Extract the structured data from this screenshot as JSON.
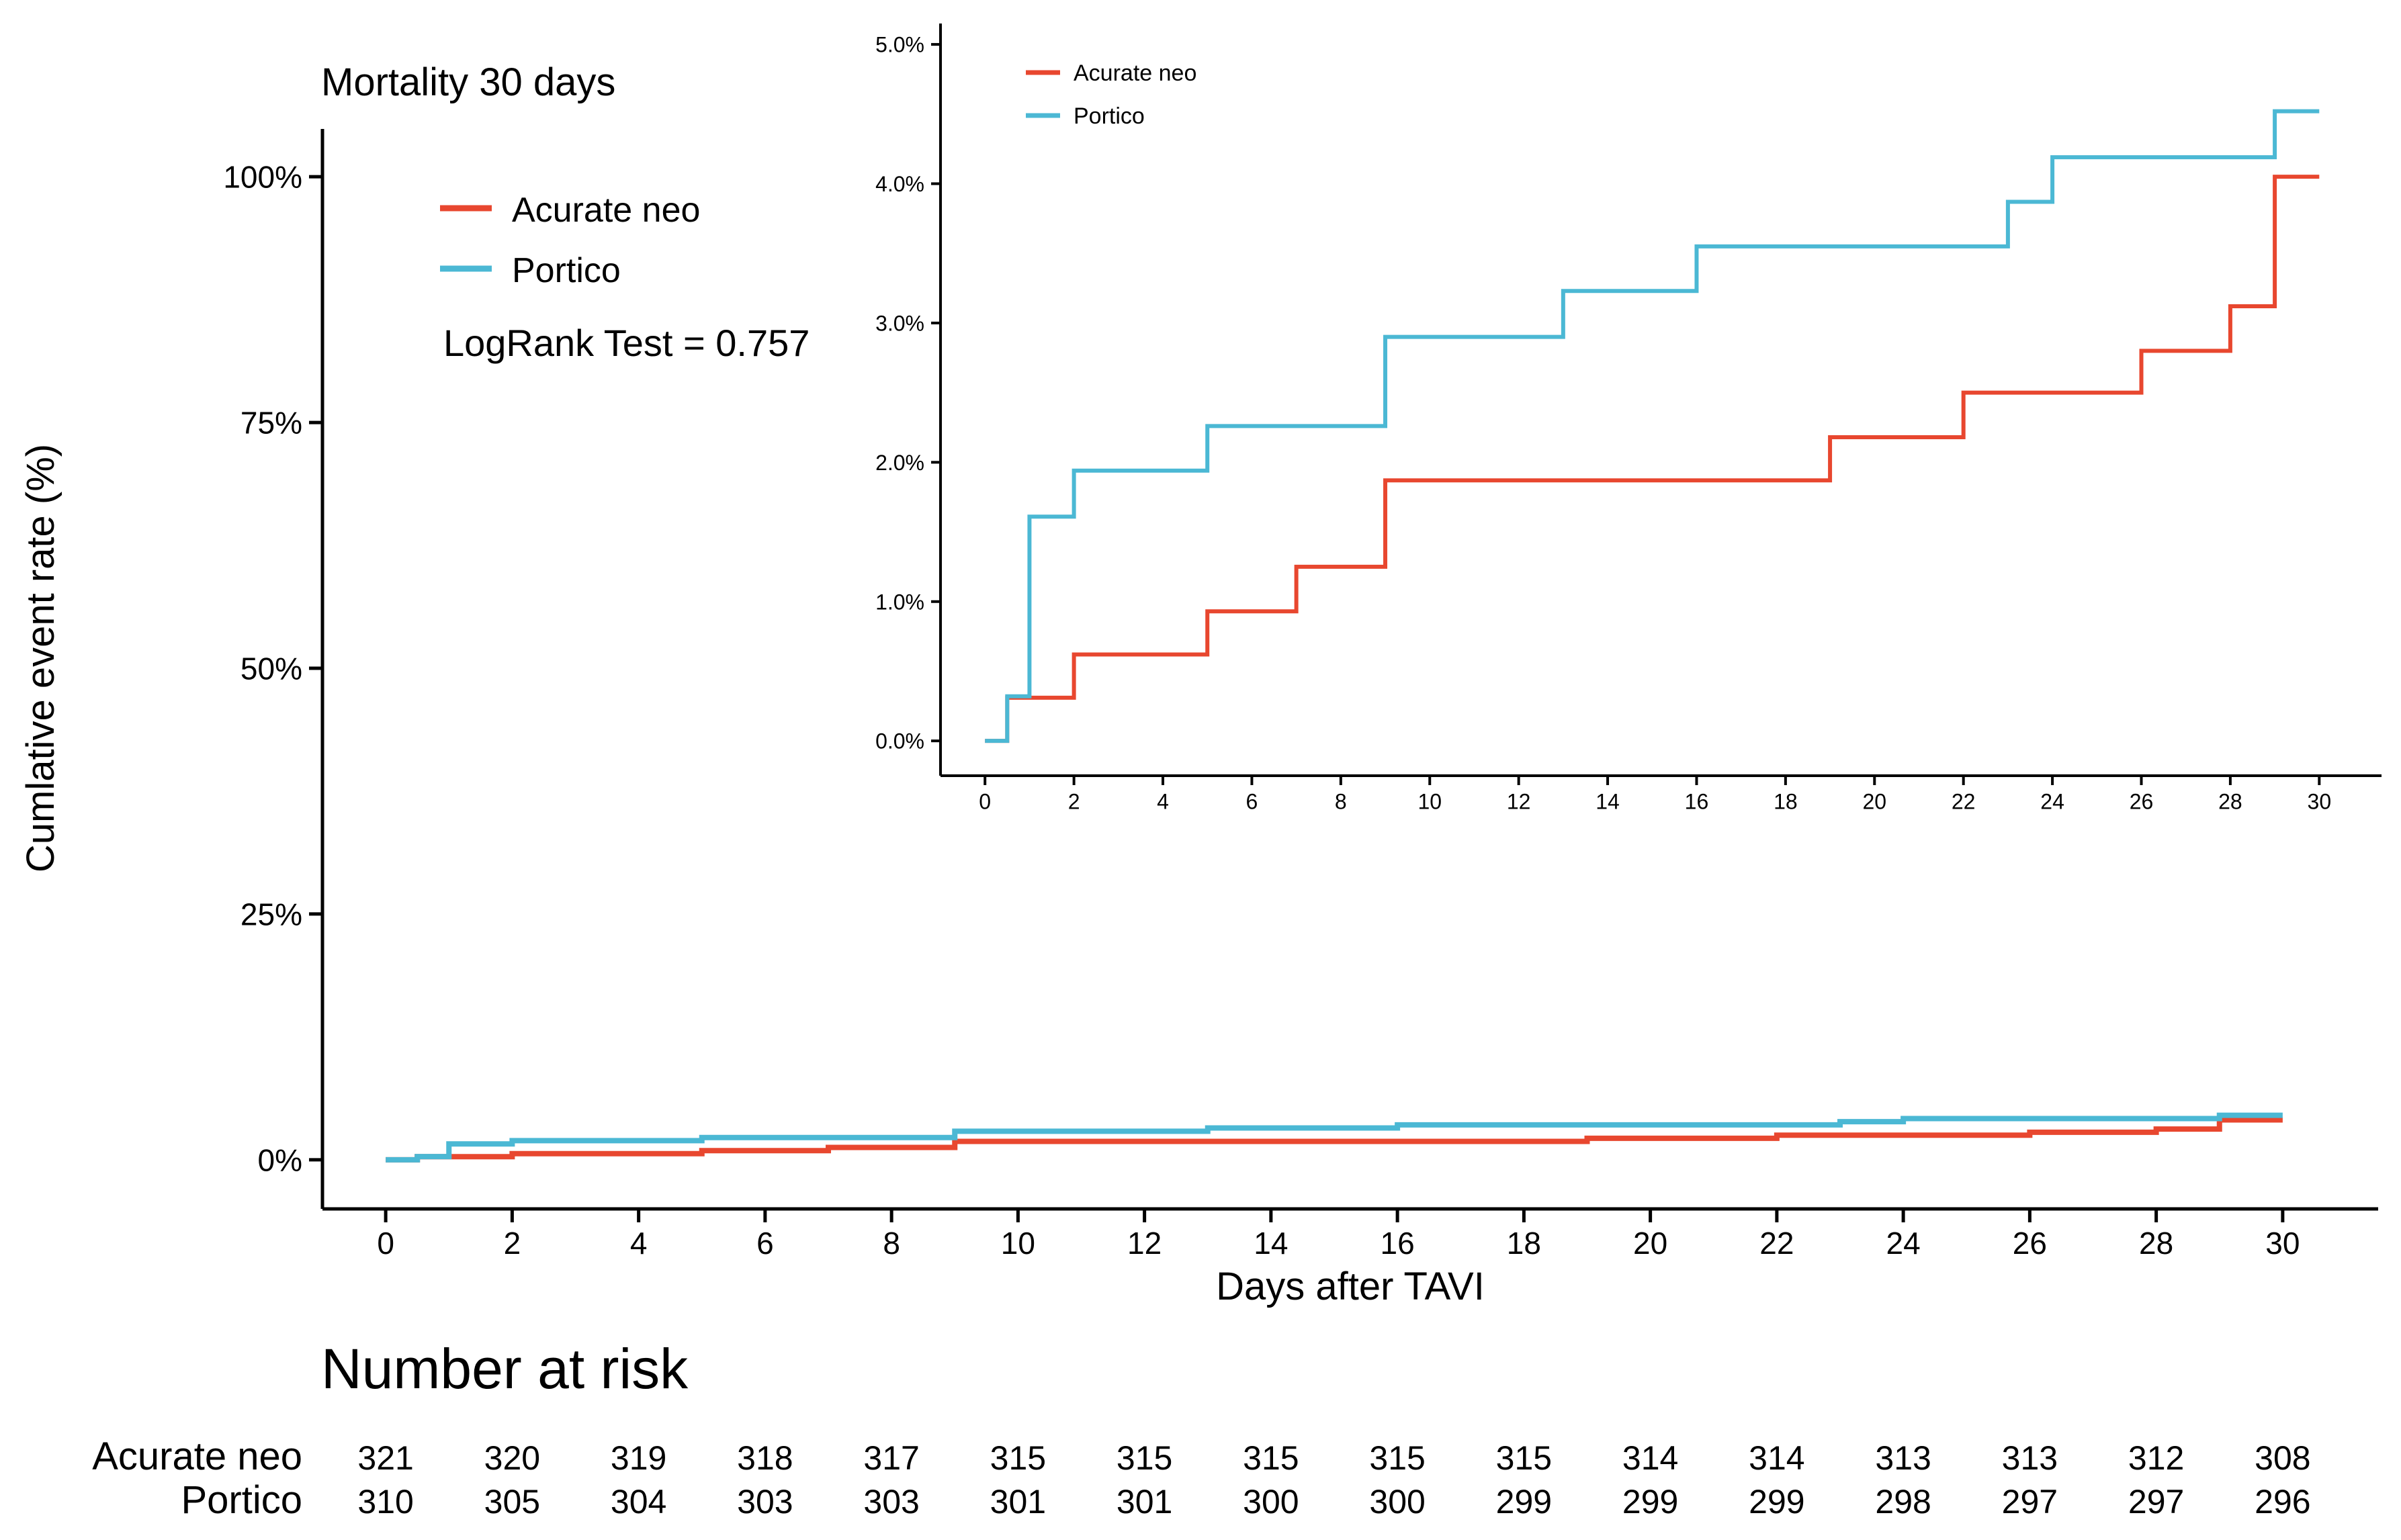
{
  "chart_data": [
    {
      "id": "main",
      "type": "line",
      "step": true,
      "title": "Mortality 30 days",
      "xlabel": "Days after TAVI",
      "ylabel": "Cumlative event rate (%)",
      "xlim": [
        -1,
        31
      ],
      "ylim": [
        -0.05,
        1.05
      ],
      "xticks": [
        0,
        2,
        4,
        6,
        8,
        10,
        12,
        14,
        16,
        18,
        20,
        22,
        24,
        26,
        28,
        30
      ],
      "yticks": [
        0,
        0.25,
        0.5,
        0.75,
        1.0
      ],
      "ytick_labels": [
        "0%",
        "25%",
        "50%",
        "75%",
        "100%"
      ],
      "legend": {
        "placement": "top-left",
        "entries": [
          "Acurate neo",
          "Portico"
        ]
      },
      "annotation": "LogRank Test = 0.757",
      "series": [
        {
          "name": "Acurate neo",
          "color": "#E8472F",
          "x": [
            0,
            0.5,
            2,
            5,
            7,
            9,
            19,
            22,
            26,
            28,
            29,
            30
          ],
          "y": [
            0,
            0.0031,
            0.0062,
            0.0093,
            0.0125,
            0.0187,
            0.0218,
            0.025,
            0.028,
            0.0312,
            0.0405,
            0.0405
          ]
        },
        {
          "name": "Portico",
          "color": "#4BB8D4",
          "x": [
            0,
            0.5,
            1,
            2,
            5,
            9,
            13,
            16,
            23,
            24,
            29,
            30
          ],
          "y": [
            0,
            0.0032,
            0.0161,
            0.0194,
            0.0226,
            0.029,
            0.0323,
            0.0355,
            0.0387,
            0.0419,
            0.0452,
            0.0452
          ]
        }
      ]
    },
    {
      "id": "inset",
      "type": "line",
      "step": true,
      "xlim": [
        -1,
        31.4
      ],
      "ylim": [
        -0.0025,
        0.0515
      ],
      "xticks": [
        0,
        2,
        4,
        6,
        8,
        10,
        12,
        14,
        16,
        18,
        20,
        22,
        24,
        26,
        28,
        30
      ],
      "yticks": [
        0,
        0.01,
        0.02,
        0.03,
        0.04,
        0.05
      ],
      "ytick_labels": [
        "0.0%",
        "1.0%",
        "2.0%",
        "3.0%",
        "4.0%",
        "5.0%"
      ],
      "legend": {
        "placement": "top-left",
        "entries": [
          "Acurate neo",
          "Portico"
        ]
      },
      "series_ref": "main"
    }
  ],
  "risk_table": {
    "title": "Number at risk",
    "rows": [
      {
        "label": "Acurate neo",
        "values": [
          "321",
          "320",
          "319",
          "318",
          "317",
          "315",
          "315",
          "315",
          "315",
          "315",
          "314",
          "314",
          "313",
          "313",
          "312",
          "308"
        ]
      },
      {
        "label": "Portico",
        "values": [
          "310",
          "305",
          "304",
          "303",
          "303",
          "301",
          "301",
          "300",
          "300",
          "299",
          "299",
          "299",
          "298",
          "297",
          "297",
          "296"
        ]
      }
    ]
  }
}
